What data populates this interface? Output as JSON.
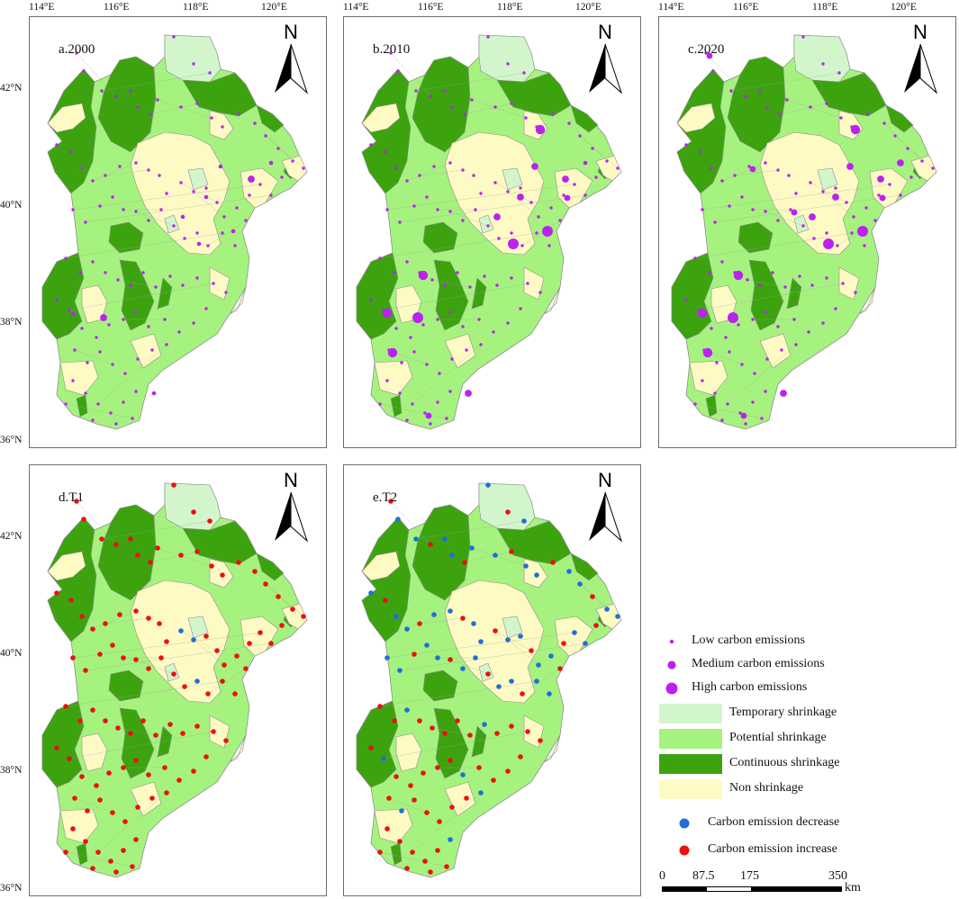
{
  "colors": {
    "temporary": "#d3f5cc",
    "potential": "#a6f27f",
    "continuous": "#3ca30f",
    "none": "#fefac3",
    "low_medium_high": "#bb22ee",
    "decrease": "#1f6fd6",
    "increase": "#ec1010",
    "boundary": "#8f8f8f",
    "frame": "#6e6e6e"
  },
  "axes": {
    "lon_labels": [
      "114°E",
      "116°E",
      "118°E",
      "120°E"
    ],
    "lat_labels": [
      "42°N",
      "40°N",
      "38°N",
      "36°N"
    ]
  },
  "north_label": "N",
  "panels": [
    {
      "id": "a",
      "title": "a.2000",
      "mode": "size",
      "level": [
        1,
        1,
        1,
        1,
        2,
        2,
        1,
        1,
        1,
        1,
        1,
        1,
        1,
        1,
        1,
        1,
        1,
        1,
        1,
        1,
        1,
        1,
        1,
        1,
        1
      ]
    },
    {
      "id": "b",
      "title": "b.2010",
      "mode": "size",
      "level": [
        2,
        2,
        3,
        3,
        2,
        3,
        2,
        2,
        2,
        1,
        2,
        1,
        2,
        1,
        2,
        3,
        3,
        2,
        1,
        3,
        1,
        1,
        1,
        3,
        1
      ]
    },
    {
      "id": "c",
      "title": "c.2020",
      "mode": "size",
      "level": [
        2,
        2,
        3,
        3,
        2,
        3,
        2,
        2,
        2,
        2,
        2,
        1,
        2,
        2,
        2,
        3,
        3,
        2,
        2,
        3,
        2,
        2,
        2,
        3,
        2
      ]
    },
    {
      "id": "d",
      "title": "d.T1",
      "mode": "change",
      "change": "mostly_increase"
    },
    {
      "id": "e",
      "title": "e.T2",
      "mode": "change",
      "change": "mixed"
    }
  ],
  "legend": [
    {
      "kind": "dot-small",
      "label": "Low carbon emissions"
    },
    {
      "kind": "dot-medium",
      "label": "Medium carbon emissions"
    },
    {
      "kind": "dot-large",
      "label": "High carbon emissions"
    },
    {
      "kind": "patch-temporary",
      "label": "Temporary shrinkage"
    },
    {
      "kind": "patch-potential",
      "label": "Potential shrinkage"
    },
    {
      "kind": "patch-continuous",
      "label": "Continuous shrinkage"
    },
    {
      "kind": "patch-none",
      "label": "Non shrinkage"
    },
    {
      "kind": "dot-decrease",
      "label": "Carbon emission decrease"
    },
    {
      "kind": "dot-increase",
      "label": "Carbon emission increase"
    }
  ],
  "scale": {
    "ticks": [
      "0",
      "87.5",
      "175",
      "350"
    ],
    "unit": "km"
  }
}
